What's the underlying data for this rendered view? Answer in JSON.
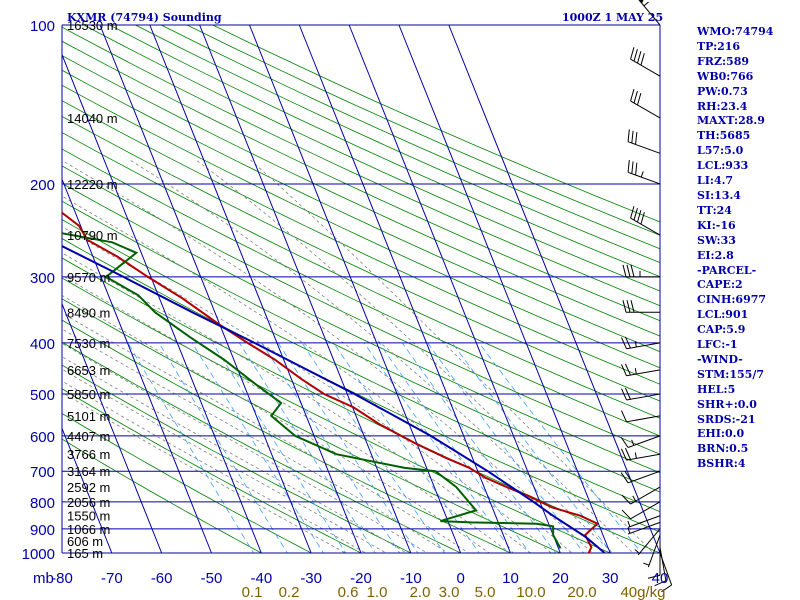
{
  "header": {
    "title": "KXMR (74794) Sounding",
    "time": "1000Z  1 MAY 25"
  },
  "indices": [
    "WMO:74794",
    "TP:216",
    "FRZ:589",
    "WB0:766",
    "PW:0.73",
    "RH:23.4",
    "MAXT:28.9",
    "TH:5685",
    "L57:5.0",
    "LCL:933",
    "LI:4.7",
    "SI:13.4",
    "TT:24",
    "KI:-16",
    "SW:33",
    "EI:2.8",
    "-PARCEL-",
    "CAPE:2",
    "CINH:6977",
    "LCL:901",
    "CAP:5.9",
    "LFC:-1",
    "-WIND-",
    "STM:155/7",
    "HEL:5",
    "SHR+:0.0",
    "SRDS:-21",
    "EHI:0.0",
    "BRN:0.5",
    "BSHR:4"
  ],
  "chart_data": {
    "type": "line",
    "title": "KXMR (74794) Sounding",
    "ylabel": "mb",
    "xlabel": "",
    "xlim": [
      -80,
      40
    ],
    "ylim": [
      1000,
      100
    ],
    "y_scale": "log",
    "pressure_ticks": [
      "100",
      "200",
      "300",
      "400",
      "500",
      "600",
      "700",
      "800",
      "900",
      "1000"
    ],
    "temp_ticks": [
      "-80",
      "-70",
      "-60",
      "-50",
      "-40",
      "-30",
      "-20",
      "-10",
      "0",
      "10",
      "20",
      "30",
      "40"
    ],
    "mixing_ratio_labels": [
      "0.1",
      "0.2",
      "0.6",
      "1.0",
      "2.0",
      "3.0",
      "5.0",
      "10.0",
      "20.0",
      "40g/kg"
    ],
    "height_labels": [
      {
        "p": 100,
        "label": "16530 m"
      },
      {
        "p": 150,
        "label": "14040 m"
      },
      {
        "p": 200,
        "label": "12220 m"
      },
      {
        "p": 250,
        "label": "10790 m"
      },
      {
        "p": 300,
        "label": "9570 m"
      },
      {
        "p": 350,
        "label": "8490 m"
      },
      {
        "p": 400,
        "label": "7530 m"
      },
      {
        "p": 450,
        "label": "6653 m"
      },
      {
        "p": 500,
        "label": "5850 m"
      },
      {
        "p": 550,
        "label": "5101 m"
      },
      {
        "p": 600,
        "label": "4407 m"
      },
      {
        "p": 650,
        "label": "3766 m"
      },
      {
        "p": 700,
        "label": "3164 m"
      },
      {
        "p": 750,
        "label": "2592 m"
      },
      {
        "p": 800,
        "label": "2056 m"
      },
      {
        "p": 850,
        "label": "1550 m"
      },
      {
        "p": 900,
        "label": "1066 m"
      },
      {
        "p": 950,
        "label": "606 m"
      },
      {
        "p": 1000,
        "label": "165 m"
      }
    ],
    "series": [
      {
        "id": "temperature",
        "color": "#b00000",
        "points": [
          [
            1015,
            25.1
          ],
          [
            975,
            26.7
          ],
          [
            925,
            26.4
          ],
          [
            880,
            29.8
          ],
          [
            850,
            27.0
          ],
          [
            820,
            22.0
          ],
          [
            780,
            18.2
          ],
          [
            750,
            14.5
          ],
          [
            720,
            11.0
          ],
          [
            690,
            8.6
          ],
          [
            660,
            4.6
          ],
          [
            620,
            -0.3
          ],
          [
            570,
            -6.0
          ],
          [
            530,
            -9.8
          ],
          [
            500,
            -14.6
          ],
          [
            470,
            -17.8
          ],
          [
            430,
            -21.8
          ],
          [
            400,
            -25.9
          ],
          [
            370,
            -30.0
          ],
          [
            330,
            -35.3
          ],
          [
            300,
            -40.6
          ],
          [
            275,
            -45.0
          ],
          [
            255,
            -49.8
          ],
          [
            240,
            -50.3
          ],
          [
            225,
            -53.0
          ],
          [
            205,
            -53.4
          ],
          [
            195,
            -54.0
          ],
          [
            175,
            -55.2
          ],
          [
            140,
            -58.4
          ],
          [
            100,
            -64.0
          ]
        ]
      },
      {
        "id": "dewpoint",
        "color": "#006000",
        "points": [
          [
            980,
            20.4
          ],
          [
            925,
            20.0
          ],
          [
            890,
            20.7
          ],
          [
            880,
            17.6
          ],
          [
            875,
            4.5
          ],
          [
            870,
            -1.5
          ],
          [
            830,
            6.5
          ],
          [
            750,
            4.4
          ],
          [
            700,
            1.5
          ],
          [
            690,
            -4.4
          ],
          [
            650,
            -17.0
          ],
          [
            600,
            -23.8
          ],
          [
            550,
            -27.0
          ],
          [
            520,
            -24.0
          ],
          [
            480,
            -27.5
          ],
          [
            430,
            -32.0
          ],
          [
            390,
            -37.0
          ],
          [
            350,
            -42.0
          ],
          [
            325,
            -44.0
          ],
          [
            300,
            -49.0
          ],
          [
            270,
            -41.0
          ],
          [
            258,
            -45.0
          ],
          [
            240,
            -62.0
          ],
          [
            222,
            -68.0
          ],
          [
            210,
            -70.0
          ],
          [
            190,
            -73.0
          ],
          [
            170,
            -79.0
          ]
        ]
      },
      {
        "id": "parcel",
        "color": "#0000a8",
        "points": [
          [
            1000,
            28.9
          ],
          [
            933,
            26.4
          ],
          [
            850,
            21.5
          ],
          [
            800,
            18.7
          ],
          [
            700,
            12.0
          ],
          [
            600,
            3.4
          ],
          [
            500,
            -8.5
          ],
          [
            400,
            -24.5
          ],
          [
            350,
            -34.5
          ],
          [
            300,
            -45.5
          ],
          [
            260,
            -56.0
          ],
          [
            240,
            -60.0
          ],
          [
            200,
            -70.0
          ],
          [
            180,
            -75.0
          ],
          [
            165,
            -79.0
          ]
        ]
      }
    ],
    "wind_barbs": [
      {
        "p": 1000,
        "dir": 160,
        "spd": 10
      },
      {
        "p": 975,
        "dir": 170,
        "spd": 10
      },
      {
        "p": 950,
        "dir": 180,
        "spd": 10
      },
      {
        "p": 925,
        "dir": 200,
        "spd": 5
      },
      {
        "p": 900,
        "dir": 220,
        "spd": 5
      },
      {
        "p": 875,
        "dir": 250,
        "spd": 5
      },
      {
        "p": 850,
        "dir": 250,
        "spd": 5
      },
      {
        "p": 800,
        "dir": 240,
        "spd": 10
      },
      {
        "p": 750,
        "dir": 240,
        "spd": 15
      },
      {
        "p": 700,
        "dir": 250,
        "spd": 20
      },
      {
        "p": 650,
        "dir": 260,
        "spd": 25
      },
      {
        "p": 600,
        "dir": 250,
        "spd": 15
      },
      {
        "p": 550,
        "dir": 260,
        "spd": 10
      },
      {
        "p": 500,
        "dir": 260,
        "spd": 20
      },
      {
        "p": 450,
        "dir": 260,
        "spd": 25
      },
      {
        "p": 400,
        "dir": 260,
        "spd": 25
      },
      {
        "p": 350,
        "dir": 270,
        "spd": 30
      },
      {
        "p": 300,
        "dir": 270,
        "spd": 35
      },
      {
        "p": 250,
        "dir": 300,
        "spd": 40
      },
      {
        "p": 200,
        "dir": 290,
        "spd": 35
      },
      {
        "p": 175,
        "dir": 290,
        "spd": 30
      },
      {
        "p": 150,
        "dir": 300,
        "spd": 30
      },
      {
        "p": 125,
        "dir": 300,
        "spd": 40
      },
      {
        "p": 100,
        "dir": 320,
        "spd": 55
      }
    ],
    "colors": {
      "grid": "#0000a8",
      "dry_adiabat": "#008000",
      "moist_adiabat": "#808080",
      "mixing_ratio": "#40a0ff",
      "axis_text": "#0000a8",
      "mixing_text": "#806000",
      "wind": "#000000"
    }
  }
}
